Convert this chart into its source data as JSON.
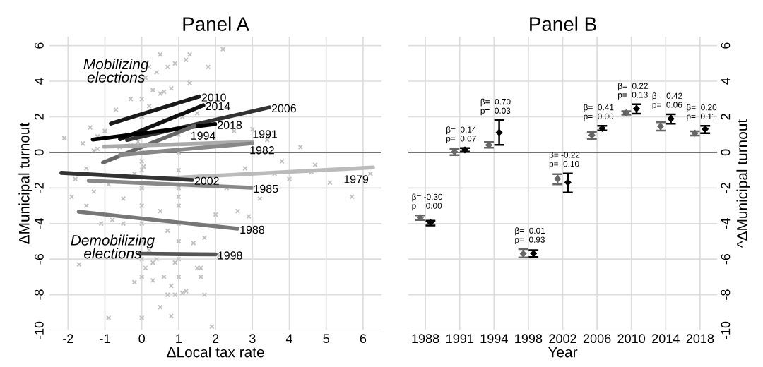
{
  "chart_data": [
    {
      "type": "scatter",
      "title": "Panel A",
      "xlabel": "ΔLocal tax rate",
      "ylabel": "ΔMunicipal turnout",
      "xlim": [
        -2.5,
        6.5
      ],
      "xticks": [
        -2,
        -1,
        0,
        1,
        2,
        3,
        4,
        5,
        6
      ],
      "ylim": [
        -10,
        6.5
      ],
      "yticks": [
        -10,
        -8,
        -6,
        -4,
        -2,
        0,
        2,
        4,
        6
      ],
      "grid": true,
      "legend": false,
      "ref_lines": [
        {
          "axis": "y",
          "value": 0,
          "color": "#000000"
        }
      ],
      "annotations": [
        "Mobilizing\nelections",
        "Demobilizing\nelections"
      ],
      "series": [
        {
          "type": "scatter",
          "marker": "cross",
          "color": "#c0c0c0",
          "x": [
            -2.1,
            -1.9,
            -1.8,
            -1.6,
            -1.5,
            -1.4,
            -1.3,
            -1.2,
            -1.1,
            -1.0,
            -0.9,
            -0.8,
            -0.7,
            -0.6,
            -0.5,
            -0.4,
            -0.3,
            -0.2,
            -0.1,
            0,
            0,
            0,
            0,
            0,
            0,
            0,
            0,
            0,
            0,
            0,
            0,
            0,
            0.1,
            0.1,
            0.2,
            0.2,
            0.3,
            0.3,
            0.4,
            0.4,
            0.5,
            0.5,
            0.5,
            0.6,
            0.6,
            0.7,
            0.7,
            0.8,
            0.8,
            0.9,
            0.9,
            1.0,
            1.0,
            1.0,
            1.0,
            1.0,
            1.0,
            1.0,
            1.0,
            1.0,
            1.0,
            1.1,
            1.2,
            1.2,
            1.3,
            1.4,
            1.5,
            1.6,
            1.7,
            1.8,
            1.9,
            2.0,
            2.1,
            2.3,
            2.5,
            2.6,
            2.8,
            3.0,
            3.2,
            3.4,
            3.6,
            3.8,
            4.0,
            4.3,
            4.6,
            4.7,
            5.1,
            5.7,
            6.2,
            -1.5,
            -1.7,
            -0.5,
            0.3,
            0.8,
            0.5,
            0.2,
            1.3,
            1.5,
            1.6,
            1.7,
            -0.2,
            0.9,
            0.7,
            1.1,
            2.2,
            2.9,
            0.6,
            0.05,
            -0.9,
            -1.2,
            -1.3,
            -0.3
          ],
          "values": [
            0.8,
            -2.5,
            -1.5,
            0.5,
            -3.0,
            1.4,
            -2.2,
            0.2,
            -4.0,
            1.2,
            -1.8,
            -3.8,
            2.4,
            0.3,
            -2.6,
            1.0,
            3.0,
            -1.2,
            0.6,
            -7.0,
            -6.0,
            -5.0,
            -4.0,
            -3.0,
            -2.0,
            -1.0,
            0.0,
            -0.5,
            2.0,
            3.0,
            4.0,
            -9.3,
            4.2,
            -6.5,
            2.6,
            -5.5,
            3.5,
            -7.2,
            4.5,
            -6.0,
            5.5,
            -8.7,
            -3.3,
            1.8,
            -7.0,
            4.8,
            -4.4,
            3.6,
            -9.2,
            5.0,
            -6.2,
            -2.5,
            -7.0,
            -6.0,
            -5.0,
            -4.0,
            -3.0,
            -2.0,
            -1.0,
            0.0,
            1.0,
            2.0,
            5.2,
            -7.8,
            3.9,
            -5.1,
            2.2,
            -6.5,
            -4.8,
            4.8,
            -9.8,
            -3.5,
            -5.8,
            -2.0,
            1.2,
            -3.3,
            -0.9,
            1.3,
            -2.6,
            0.7,
            -1.2,
            -0.5,
            -1.5,
            0.3,
            -1.1,
            -0.7,
            -1.7,
            -2.5,
            -1.2,
            -0.9,
            -6.3,
            -4.0,
            -6.2,
            -7.5,
            3.3,
            4.8,
            5.5,
            -6.5,
            -7.0,
            -8.0,
            -7.3,
            -8.0,
            -8.0,
            -7.9,
            5.8,
            -3.6,
            3.4,
            -0.8,
            -9.3,
            0.9,
            0.1,
            0.4
          ]
        },
        {
          "type": "line",
          "name": "2010",
          "color": "#1a1a1a",
          "x": [
            -0.84,
            1.56
          ],
          "values": [
            1.62,
            3.14
          ]
        },
        {
          "type": "line",
          "name": "2014",
          "color": "#111111",
          "x": [
            -0.59,
            1.67
          ],
          "values": [
            0.74,
            2.65
          ]
        },
        {
          "type": "line",
          "name": "2006",
          "color": "#333333",
          "x": [
            -0.4,
            3.46
          ],
          "values": [
            0.7,
            2.53
          ]
        },
        {
          "type": "line",
          "name": "2018",
          "color": "#000000",
          "x": [
            -1.33,
            1.99
          ],
          "values": [
            0.72,
            1.59
          ]
        },
        {
          "type": "line",
          "name": "1994",
          "color": "#666666",
          "x": [
            -1.05,
            1.43
          ],
          "values": [
            -0.57,
            1.49
          ]
        },
        {
          "type": "line",
          "name": "1991",
          "color": "#aaaaaa",
          "x": [
            -1.02,
            3.0
          ],
          "values": [
            0.32,
            0.59
          ]
        },
        {
          "type": "line",
          "name": "1982",
          "color": "#888888",
          "x": [
            -0.59,
            3.0
          ],
          "values": [
            -0.14,
            0.51
          ]
        },
        {
          "type": "line",
          "name": "1979",
          "color": "#bbbbbb",
          "x": [
            0.55,
            6.27
          ],
          "values": [
            -1.46,
            -0.85
          ]
        },
        {
          "type": "line",
          "name": "2002",
          "color": "#333333",
          "x": [
            -2.18,
            1.37
          ],
          "values": [
            -1.15,
            -1.55
          ]
        },
        {
          "type": "line",
          "name": "1985",
          "color": "#888888",
          "x": [
            -1.44,
            2.97
          ],
          "values": [
            -1.59,
            -1.99
          ]
        },
        {
          "type": "line",
          "name": "1988",
          "color": "#777777",
          "x": [
            -1.71,
            2.6
          ],
          "values": [
            -3.34,
            -4.29
          ]
        },
        {
          "type": "line",
          "name": "1998",
          "color": "#555555",
          "x": [
            -0.07,
            2.0
          ],
          "values": [
            -5.7,
            -5.74
          ]
        }
      ]
    },
    {
      "type": "scatter",
      "title": "Panel B",
      "xlabel": "Year",
      "ylabel": "^ΔMunicipal turnout",
      "categories": [
        "1988",
        "1991",
        "1994",
        "1998",
        "2002",
        "2006",
        "2010",
        "2014",
        "2018"
      ],
      "ylim": [
        -10,
        6.5
      ],
      "yticks": [
        -10,
        -8,
        -6,
        -4,
        -2,
        0,
        2,
        4,
        6
      ],
      "grid": true,
      "marker": "diamond",
      "legend": false,
      "ref_lines": [
        {
          "axis": "y",
          "value": 0,
          "color": "#000000"
        }
      ],
      "annotations": [
        {
          "text": "β= -0.30\np=  0.00",
          "x": "1988",
          "y": -3.54
        },
        {
          "text": "β=  0.14\np=  0.07",
          "x": "1991",
          "y": 0.24
        },
        {
          "text": "β=  0.70\np=  0.03",
          "x": "1994",
          "y": 1.81
        },
        {
          "text": "β=  0.01\np=  0.93",
          "x": "1998",
          "y": -5.44
        },
        {
          "text": "β= -0.22\np=  0.10",
          "x": "2002",
          "y": -1.18
        },
        {
          "text": "β=  0.41\np=  0.00",
          "x": "2006",
          "y": 1.49
        },
        {
          "text": "β=  0.22\np=  0.13",
          "x": "2010",
          "y": 2.7
        },
        {
          "text": "β=  0.42\np=  0.06",
          "x": "2014",
          "y": 2.14
        },
        {
          "text": "β=  0.20\np=  0.11",
          "x": "2018",
          "y": 1.49
        }
      ],
      "series": [
        {
          "color": "#666666",
          "values": [
            -3.67,
            0.03,
            0.41,
            -5.7,
            -1.49,
            0.97,
            2.22,
            1.46,
            1.08
          ],
          "errors": [
            [
              -3.8,
              -3.54
            ],
            [
              -0.15,
              0.18
            ],
            [
              0.26,
              0.58
            ],
            [
              -5.9,
              -5.44
            ],
            [
              -1.8,
              -1.22
            ],
            [
              0.74,
              1.16
            ],
            [
              2.12,
              2.32
            ],
            [
              1.22,
              1.69
            ],
            [
              0.95,
              1.19
            ]
          ]
        },
        {
          "color": "#000000",
          "values": [
            -3.95,
            0.14,
            1.12,
            -5.69,
            -1.69,
            1.35,
            2.46,
            1.89,
            1.31
          ],
          "errors": [
            [
              -4.11,
              -3.84
            ],
            [
              0.04,
              0.24
            ],
            [
              0.42,
              1.81
            ],
            [
              -5.88,
              -5.5
            ],
            [
              -2.26,
              -1.18
            ],
            [
              1.23,
              1.49
            ],
            [
              2.18,
              2.7
            ],
            [
              1.61,
              2.14
            ],
            [
              1.08,
              1.49
            ]
          ]
        }
      ]
    }
  ]
}
